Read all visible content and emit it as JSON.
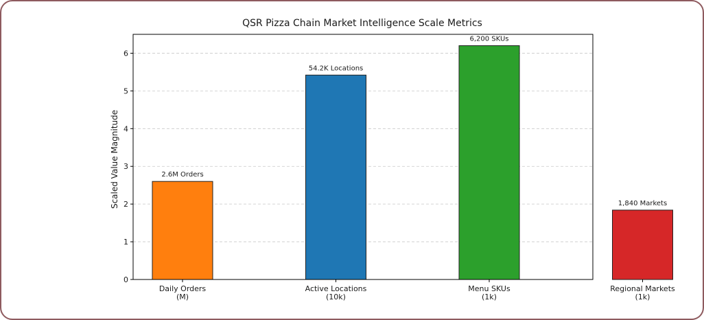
{
  "chart_data": {
    "type": "bar",
    "title": "QSR Pizza Chain Market Intelligence Scale Metrics",
    "xlabel": "",
    "ylabel": "Scaled Value Magnitude",
    "ylim": [
      0,
      6.5
    ],
    "yticks": [
      0,
      1,
      2,
      3,
      4,
      5,
      6
    ],
    "grid": "y-dashed",
    "categories": [
      [
        "Daily Orders",
        "(M)"
      ],
      [
        "Active Locations",
        "(10k)"
      ],
      [
        "Menu SKUs",
        "(1k)"
      ],
      [
        "Regional Markets",
        "(1k)"
      ]
    ],
    "values": [
      2.6,
      5.42,
      6.2,
      1.84
    ],
    "data_labels": [
      "2.6M Orders",
      "54.2K Locations",
      "6,200 SKUs",
      "1,840 Markets"
    ],
    "colors": [
      "#ff7f0e",
      "#1f77b4",
      "#2ca02c",
      "#d62728"
    ]
  }
}
